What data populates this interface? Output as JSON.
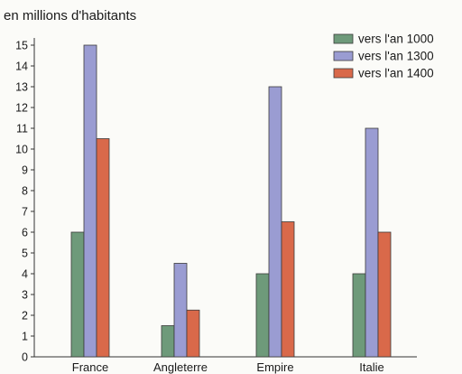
{
  "chart_data": {
    "type": "bar",
    "title": "en millions d'habitants",
    "categories": [
      "France",
      "Angleterre",
      "Empire",
      "Italie"
    ],
    "series": [
      {
        "name": "vers l'an 1000",
        "color": "#6e9a7a",
        "values": [
          6,
          1.5,
          4,
          4
        ]
      },
      {
        "name": "vers l'an 1300",
        "color": "#9a9cd2",
        "values": [
          15,
          4.5,
          13,
          11
        ]
      },
      {
        "name": "vers l'an 1400",
        "color": "#d9694a",
        "values": [
          10.5,
          2.25,
          6.5,
          6
        ]
      }
    ],
    "yticks": [
      0,
      1,
      2,
      3,
      4,
      5,
      6,
      7,
      8,
      9,
      10,
      11,
      12,
      13,
      14,
      15
    ],
    "ylim": [
      0,
      15
    ],
    "legend_position": "top-right",
    "grid": false
  }
}
